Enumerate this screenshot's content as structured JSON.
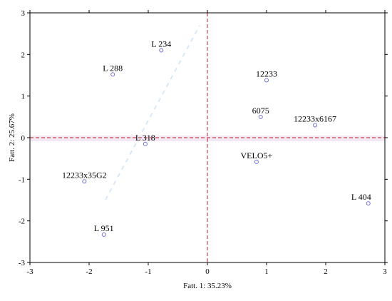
{
  "chart_data": {
    "type": "scatter",
    "xlabel": "Fatt.  1: 35.23%",
    "ylabel": "Fatt.  2: 25.67%",
    "xlim": [
      -3,
      3
    ],
    "ylim": [
      -3,
      3
    ],
    "xticks": [
      "-3",
      "-2",
      "-1",
      "0",
      "1",
      "2",
      "3"
    ],
    "yticks": [
      "-3",
      "-2",
      "-1",
      "0",
      "1",
      "2",
      "3"
    ],
    "grid": false,
    "reference_lines": {
      "x": 0,
      "y": 0,
      "color": "#b22222",
      "style": "dashed"
    },
    "points": [
      {
        "label": "L 234",
        "x": -0.78,
        "y": 2.1
      },
      {
        "label": "L 288",
        "x": -1.6,
        "y": 1.52
      },
      {
        "label": "12233",
        "x": 1.0,
        "y": 1.38
      },
      {
        "label": "6075",
        "x": 0.9,
        "y": 0.5
      },
      {
        "label": "12233x6167",
        "x": 1.82,
        "y": 0.3
      },
      {
        "label": "L 318",
        "x": -1.05,
        "y": -0.15
      },
      {
        "label": "VELO5+",
        "x": 0.83,
        "y": -0.58
      },
      {
        "label": "12233x35G2",
        "x": -2.08,
        "y": -1.05
      },
      {
        "label": "L 404",
        "x": 2.72,
        "y": -1.58
      },
      {
        "label": "L 951",
        "x": -1.75,
        "y": -2.33
      }
    ],
    "colors": {
      "point": "#6e6ed8",
      "reference_line": "#b22222",
      "frame": "#000000"
    }
  }
}
